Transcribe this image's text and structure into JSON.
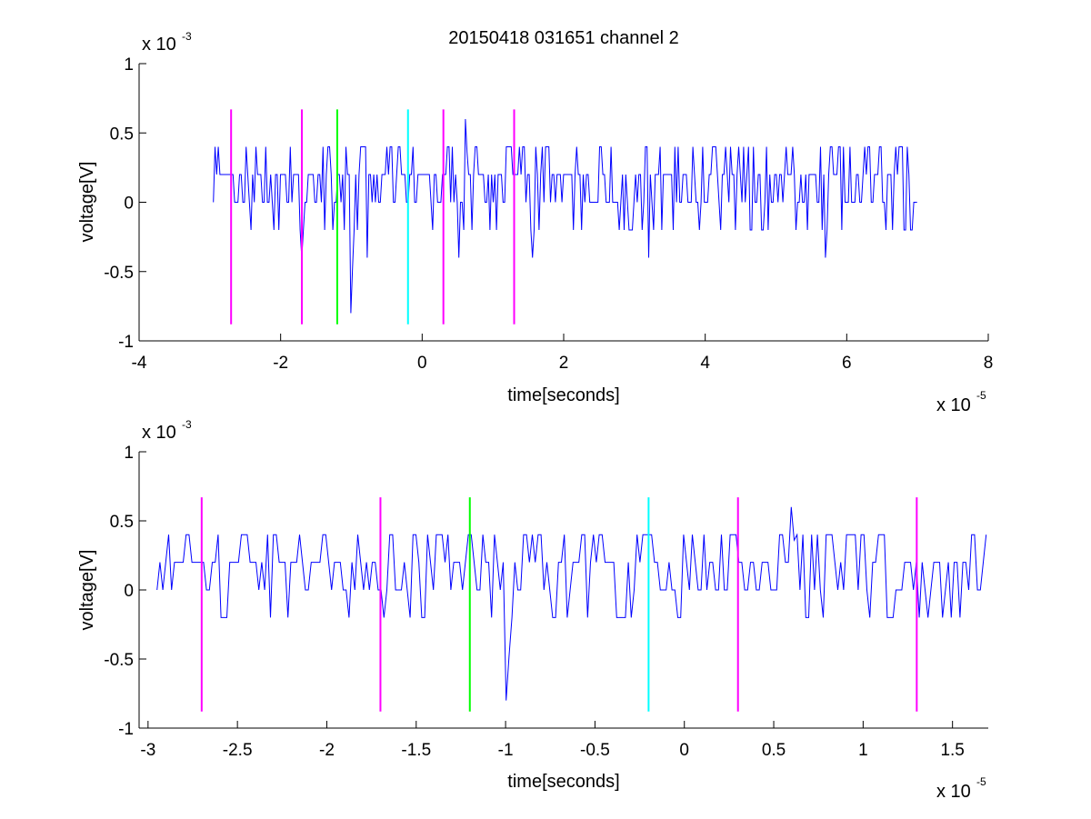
{
  "chart_data": [
    {
      "type": "line",
      "title": "20150418 031651 channel 2",
      "xlabel": "time[seconds]",
      "ylabel": "voltage[V]",
      "x_exponent": {
        "base": "x 10",
        "power": "-5"
      },
      "y_exponent": {
        "base": "x 10",
        "power": "-3"
      },
      "xlim": [
        -4,
        8
      ],
      "ylim": [
        -1,
        1
      ],
      "xticks": [
        -4,
        -2,
        0,
        2,
        4,
        6,
        8
      ],
      "xtick_labels": [
        "-4",
        "-2",
        "0",
        "2",
        "4",
        "6",
        "8"
      ],
      "yticks": [
        1,
        0.5,
        0,
        -0.5,
        -1
      ],
      "ytick_labels": [
        "1",
        "0.5",
        "0",
        "-0.5",
        "-1"
      ],
      "signal": {
        "x_start": -2.95,
        "x_end": 7.0,
        "levels": [
          -0.4,
          -0.2,
          0,
          0.2,
          0.4
        ],
        "min": -0.8,
        "max": 0.6
      },
      "markers": [
        {
          "x": -2.7,
          "color": "#ff00ff"
        },
        {
          "x": -1.7,
          "color": "#ff00ff"
        },
        {
          "x": -1.2,
          "color": "#00ff00"
        },
        {
          "x": -0.2,
          "color": "#00ffff"
        },
        {
          "x": 0.3,
          "color": "#ff00ff"
        },
        {
          "x": 1.3,
          "color": "#ff00ff"
        }
      ],
      "marker_range": [
        -0.88,
        0.67
      ],
      "series_color": "#0000ff",
      "grid": false
    },
    {
      "type": "line",
      "title": "",
      "xlabel": "time[seconds]",
      "ylabel": "voltage[V]",
      "x_exponent": {
        "base": "x 10",
        "power": "-5"
      },
      "y_exponent": {
        "base": "x 10",
        "power": "-3"
      },
      "xlim": [
        -3.05,
        1.7
      ],
      "ylim": [
        -1,
        1
      ],
      "xticks": [
        -3,
        -2.5,
        -2,
        -1.5,
        -1,
        -0.5,
        0,
        0.5,
        1,
        1.5
      ],
      "xtick_labels": [
        "-3",
        "-2.5",
        "-2",
        "-1.5",
        "-1",
        "-0.5",
        "0",
        "0.5",
        "1",
        "1.5"
      ],
      "yticks": [
        1,
        0.5,
        0,
        -0.5,
        -1
      ],
      "ytick_labels": [
        "1",
        "0.5",
        "0",
        "-0.5",
        "-1"
      ],
      "signal": {
        "x_start": -2.95,
        "x_end": 1.7,
        "levels": [
          -0.2,
          0,
          0.2,
          0.4
        ],
        "min": -0.8,
        "max": 0.6
      },
      "markers": [
        {
          "x": -2.7,
          "color": "#ff00ff"
        },
        {
          "x": -1.7,
          "color": "#ff00ff"
        },
        {
          "x": -1.2,
          "color": "#00ff00"
        },
        {
          "x": -0.2,
          "color": "#00ffff"
        },
        {
          "x": 0.3,
          "color": "#ff00ff"
        },
        {
          "x": 1.3,
          "color": "#ff00ff"
        }
      ],
      "marker_range": [
        -0.88,
        0.67
      ],
      "series_color": "#0000ff",
      "grid": false
    }
  ]
}
